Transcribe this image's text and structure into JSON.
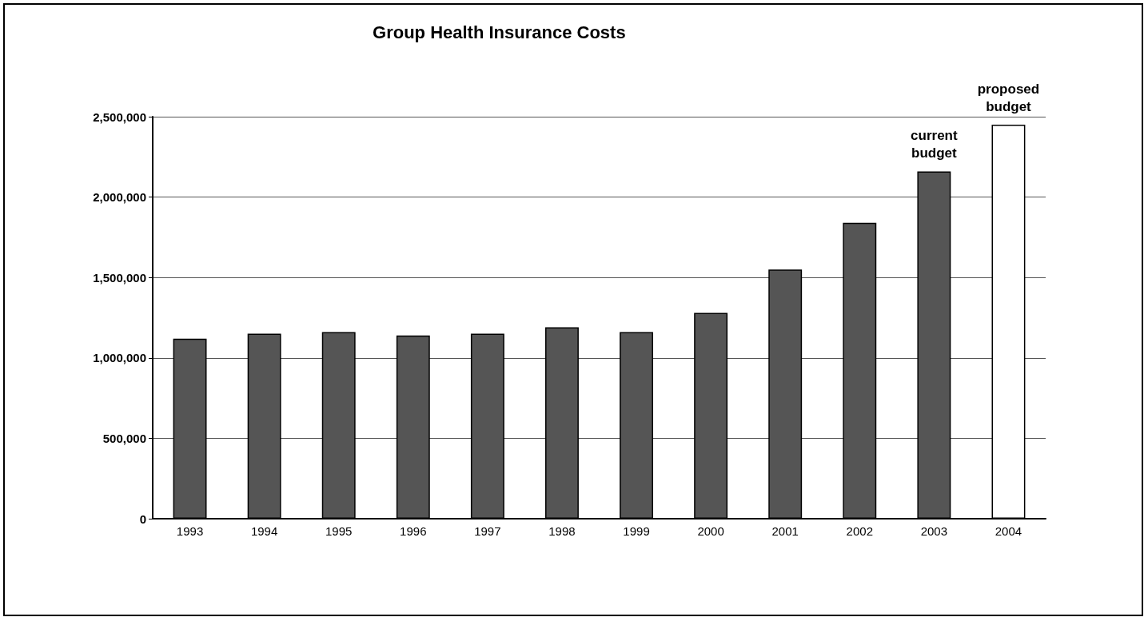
{
  "chart_data": {
    "type": "bar",
    "title": "Group Health Insurance Costs",
    "categories": [
      "1993",
      "1994",
      "1995",
      "1996",
      "1997",
      "1998",
      "1999",
      "2000",
      "2001",
      "2002",
      "2003",
      "2004"
    ],
    "values": [
      1120000,
      1150000,
      1160000,
      1140000,
      1150000,
      1190000,
      1160000,
      1280000,
      1550000,
      1840000,
      2160000,
      2450000
    ],
    "colors": [
      "#555555",
      "#555555",
      "#555555",
      "#555555",
      "#555555",
      "#555555",
      "#555555",
      "#555555",
      "#555555",
      "#555555",
      "#555555",
      "#ffffff"
    ],
    "ylim": [
      0,
      2500000
    ],
    "yticks": [
      {
        "value": 0,
        "label": "0"
      },
      {
        "value": 500000,
        "label": "500,000"
      },
      {
        "value": 1000000,
        "label": "1,000,000"
      },
      {
        "value": 1500000,
        "label": "1,500,000"
      },
      {
        "value": 2000000,
        "label": "2,000,000"
      },
      {
        "value": 2500000,
        "label": "2,500,000"
      }
    ],
    "grid": "y",
    "annotations": [
      {
        "text": "current\nbudget",
        "x": "2003",
        "y": 2160000
      },
      {
        "text": "proposed\nbudget",
        "x": "2004",
        "y": 2450000
      }
    ]
  }
}
